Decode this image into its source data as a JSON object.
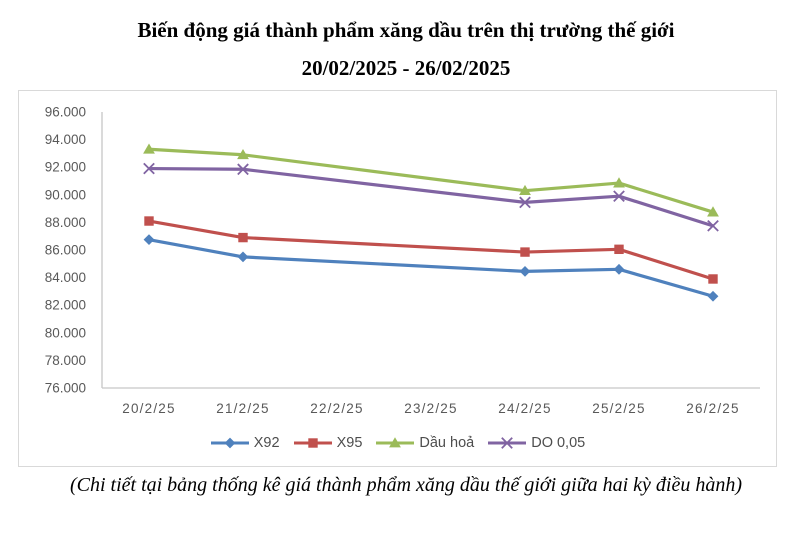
{
  "title": {
    "line1": "Biến động giá thành phẩm xăng dầu trên thị trường thế giới",
    "line2": "20/02/2025 - 26/02/2025"
  },
  "footer": {
    "note": "(Chi tiết tại bảng thống kê giá thành phẩm xăng dầu thế giới giữa hai kỳ điều hành)"
  },
  "chart_data": {
    "type": "line",
    "categories": [
      "20/2/25",
      "21/2/25",
      "22/2/25",
      "23/2/25",
      "24/2/25",
      "25/2/25",
      "26/2/25"
    ],
    "series": [
      {
        "name": "X92",
        "color": "#4F81BD",
        "marker": "diamond",
        "values": [
          86.75,
          85.5,
          null,
          null,
          84.45,
          84.6,
          82.65
        ]
      },
      {
        "name": "X95",
        "color": "#C0504D",
        "marker": "square",
        "values": [
          88.1,
          86.9,
          null,
          null,
          85.85,
          86.05,
          83.9
        ]
      },
      {
        "name": "Dầu hoả",
        "color": "#9BBB59",
        "marker": "triangle",
        "values": [
          93.3,
          92.9,
          null,
          null,
          90.3,
          90.85,
          88.75
        ]
      },
      {
        "name": "DO 0,05",
        "color": "#8064A2",
        "marker": "x",
        "values": [
          91.9,
          91.85,
          null,
          null,
          89.45,
          89.9,
          87.75
        ]
      }
    ],
    "ylim": [
      76,
      96
    ],
    "ytick_step": 2,
    "ytick_labels": [
      "96.000",
      "94.000",
      "92.000",
      "90.000",
      "88.000",
      "86.000",
      "84.000",
      "82.000",
      "80.000",
      "78.000",
      "76.000"
    ],
    "grid": false,
    "legend_position": "bottom",
    "axis_color": "#c6c6c6",
    "label_color": "#595959",
    "title": "Biến động giá thành phẩm xăng dầu trên thị trường thế giới 20/02/2025 - 26/02/2025"
  }
}
